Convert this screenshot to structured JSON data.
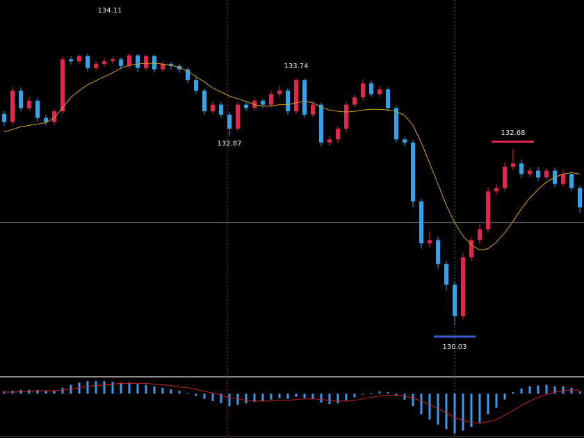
{
  "chart_data": {
    "type": "candlestick",
    "up_color": "#e8234f",
    "down_color": "#2fa4ee",
    "ma_color": "#d9a21b",
    "hist_color": "#3a9cf0",
    "signal_color": "#d42424",
    "ylim": [
      129.28,
      134.91
    ],
    "reference_line": 131.57,
    "open": [
      133.2,
      133.08,
      133.55,
      133.29,
      133.4,
      133.14,
      133.08,
      133.24,
      134.02,
      133.99,
      134.07,
      133.89,
      133.95,
      133.99,
      134.02,
      133.92,
      134.08,
      133.89,
      134.07,
      133.87,
      133.95,
      133.92,
      133.87,
      133.71,
      133.55,
      133.24,
      133.34,
      133.19,
      132.98,
      133.34,
      133.29,
      133.4,
      133.34,
      133.5,
      133.55,
      133.24,
      133.71,
      133.19,
      133.34,
      132.77,
      132.82,
      132.98,
      133.34,
      133.45,
      133.66,
      133.5,
      133.57,
      133.29,
      132.82,
      132.77,
      131.89,
      131.26,
      131.31,
      130.95,
      130.64,
      130.17,
      131.05,
      131.31,
      131.47,
      132.04,
      132.09,
      132.41,
      132.46,
      132.3,
      132.35,
      132.25,
      132.35,
      132.15,
      132.3,
      132.09
    ],
    "high": [
      133.25,
      133.62,
      133.6,
      133.46,
      133.44,
      133.19,
      133.28,
      134.06,
      134.07,
      134.09,
      134.1,
      133.99,
      134.04,
      134.06,
      134.05,
      134.11,
      134.1,
      134.09,
      134.09,
      133.99,
      133.98,
      133.95,
      133.9,
      133.75,
      133.58,
      133.39,
      133.38,
      133.23,
      133.38,
      133.4,
      133.44,
      133.43,
      133.55,
      133.62,
      133.59,
      133.74,
      133.73,
      133.38,
      133.37,
      132.87,
      133.02,
      133.38,
      133.49,
      133.72,
      133.7,
      133.62,
      133.6,
      133.33,
      132.86,
      132.81,
      131.93,
      131.45,
      131.36,
      131.0,
      130.7,
      131.12,
      131.36,
      131.55,
      132.1,
      132.15,
      132.48,
      132.68,
      132.52,
      132.4,
      132.41,
      132.39,
      132.4,
      132.36,
      132.34,
      132.13
    ],
    "low": [
      133.02,
      133.03,
      133.24,
      133.25,
      133.09,
      133.03,
      133.04,
      133.2,
      133.94,
      133.95,
      133.84,
      133.85,
      133.91,
      133.95,
      133.87,
      133.88,
      133.83,
      133.85,
      133.82,
      133.83,
      133.87,
      133.82,
      133.66,
      133.5,
      133.19,
      133.2,
      133.14,
      132.87,
      132.94,
      133.24,
      133.25,
      133.29,
      133.3,
      133.45,
      133.19,
      133.2,
      133.14,
      133.15,
      132.72,
      132.72,
      132.77,
      132.93,
      133.3,
      133.4,
      133.46,
      133.45,
      133.24,
      132.77,
      132.72,
      131.8,
      131.18,
      131.2,
      130.88,
      130.55,
      130.03,
      130.12,
      131.0,
      131.25,
      131.42,
      131.99,
      132.04,
      132.36,
      132.24,
      132.25,
      132.2,
      132.21,
      132.1,
      132.11,
      132.04,
      131.72
    ],
    "close": [
      133.08,
      133.55,
      133.29,
      133.4,
      133.14,
      133.08,
      133.24,
      134.02,
      133.99,
      134.07,
      133.89,
      133.95,
      133.99,
      134.02,
      133.92,
      134.08,
      133.89,
      134.07,
      133.87,
      133.95,
      133.92,
      133.87,
      133.71,
      133.55,
      133.24,
      133.34,
      133.19,
      132.98,
      133.34,
      133.29,
      133.4,
      133.34,
      133.5,
      133.55,
      133.24,
      133.71,
      133.19,
      133.34,
      132.77,
      132.82,
      132.98,
      133.34,
      133.45,
      133.66,
      133.5,
      133.57,
      133.29,
      132.82,
      132.77,
      131.89,
      131.26,
      131.31,
      130.95,
      130.64,
      130.17,
      131.05,
      131.31,
      131.47,
      132.04,
      132.09,
      132.41,
      132.46,
      132.3,
      132.35,
      132.25,
      132.35,
      132.15,
      132.3,
      132.09,
      131.8
    ],
    "ma": [
      132.93,
      132.97,
      133.01,
      133.03,
      133.05,
      133.07,
      133.14,
      133.29,
      133.45,
      133.55,
      133.64,
      133.7,
      133.76,
      133.82,
      133.89,
      133.93,
      133.95,
      133.96,
      133.96,
      133.95,
      133.93,
      133.9,
      133.84,
      133.76,
      133.68,
      133.59,
      133.53,
      133.47,
      133.43,
      133.39,
      133.34,
      133.32,
      133.32,
      133.34,
      133.34,
      133.37,
      133.39,
      133.37,
      133.3,
      133.26,
      133.24,
      133.23,
      133.24,
      133.26,
      133.27,
      133.27,
      133.26,
      133.24,
      133.18,
      133.03,
      132.77,
      132.46,
      132.15,
      131.83,
      131.57,
      131.37,
      131.24,
      131.16,
      131.18,
      131.28,
      131.42,
      131.59,
      131.78,
      131.94,
      132.07,
      132.18,
      132.25,
      132.3,
      132.32,
      132.3
    ],
    "y2lim": [
      -0.6,
      0.2
    ],
    "macd": [
      0.03,
      0.04,
      0.05,
      0.05,
      0.05,
      0.04,
      0.04,
      0.08,
      0.12,
      0.15,
      0.17,
      0.17,
      0.17,
      0.16,
      0.15,
      0.15,
      0.13,
      0.12,
      0.1,
      0.08,
      0.06,
      0.04,
      0.01,
      -0.03,
      -0.07,
      -0.1,
      -0.13,
      -0.17,
      -0.15,
      -0.13,
      -0.11,
      -0.1,
      -0.08,
      -0.06,
      -0.07,
      -0.04,
      -0.06,
      -0.07,
      -0.12,
      -0.14,
      -0.13,
      -0.09,
      -0.05,
      -0.01,
      0.01,
      0.03,
      0.02,
      -0.03,
      -0.08,
      -0.17,
      -0.28,
      -0.35,
      -0.42,
      -0.48,
      -0.54,
      -0.5,
      -0.45,
      -0.39,
      -0.28,
      -0.19,
      -0.08,
      0.02,
      0.07,
      0.1,
      0.11,
      0.12,
      0.1,
      0.1,
      0.08,
      0.03
    ],
    "signal": [
      0.02,
      0.02,
      0.03,
      0.03,
      0.04,
      0.04,
      0.04,
      0.05,
      0.06,
      0.08,
      0.1,
      0.11,
      0.12,
      0.13,
      0.14,
      0.14,
      0.14,
      0.14,
      0.13,
      0.12,
      0.11,
      0.09,
      0.08,
      0.06,
      0.03,
      0.01,
      -0.02,
      -0.05,
      -0.07,
      -0.09,
      -0.1,
      -0.1,
      -0.1,
      -0.09,
      -0.09,
      -0.08,
      -0.07,
      -0.07,
      -0.08,
      -0.09,
      -0.1,
      -0.1,
      -0.09,
      -0.07,
      -0.05,
      -0.03,
      -0.02,
      -0.02,
      -0.03,
      -0.06,
      -0.1,
      -0.15,
      -0.2,
      -0.26,
      -0.32,
      -0.36,
      -0.39,
      -0.4,
      -0.38,
      -0.35,
      -0.29,
      -0.23,
      -0.16,
      -0.1,
      -0.05,
      -0.01,
      0.02,
      0.04,
      0.05,
      0.05
    ]
  }
}
